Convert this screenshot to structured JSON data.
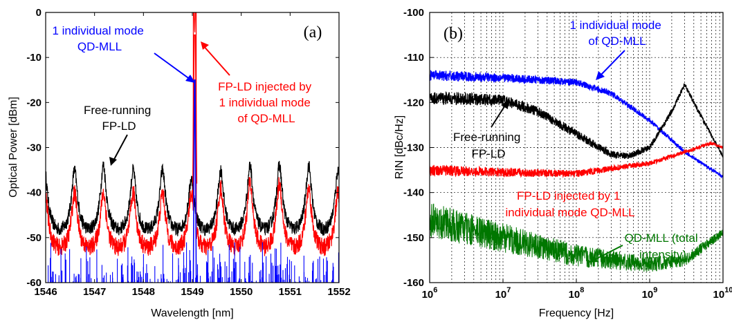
{
  "chart_data": [
    {
      "type": "line",
      "panel_label": "(a)",
      "xlabel": "Wavelength [nm]",
      "ylabel": "Optical Power [dBm]",
      "xlim": [
        1546,
        1552
      ],
      "ylim": [
        -60,
        0
      ],
      "xticks": [
        "1546",
        "1547",
        "1548",
        "1549",
        "1550",
        "1551",
        "1552"
      ],
      "yticks": [
        "0",
        "-10",
        "-20",
        "-30",
        "-40",
        "-50",
        "-60"
      ],
      "grid": false,
      "colors": {
        "free_running": "#000000",
        "injected": "#ff0000",
        "qd_mll": "#0000ff"
      },
      "series": [
        {
          "color": "#000000",
          "description": "free-running FP-LD comb",
          "peaks_x": [
            1545.98,
            1546.59,
            1547.18,
            1547.79,
            1548.39,
            1548.98,
            1549.58,
            1550.18,
            1550.78,
            1551.38,
            1551.98
          ],
          "peak_y": [
            -35,
            -35,
            -34,
            -35,
            -35,
            -37,
            -35,
            -34,
            -34,
            -34,
            -35
          ],
          "valley_y": -49
        },
        {
          "color": "#ff0000",
          "description": "FP-LD injected comb",
          "peaks_x": [
            1545.98,
            1546.59,
            1547.18,
            1547.79,
            1548.39,
            1548.98,
            1549.58,
            1550.18,
            1550.78,
            1551.38,
            1551.98
          ],
          "peak_y": [
            -39,
            -40,
            -40,
            -40,
            -40,
            -40,
            -39,
            -38,
            -38,
            -39,
            -40
          ],
          "valley_y": -53,
          "main_peak": {
            "x": 1549.05,
            "y": -5
          }
        },
        {
          "color": "#0000ff",
          "description": "individual QD-MLL mode",
          "main_peak": {
            "x": 1549.05,
            "y": -15
          },
          "noise_floor": -60,
          "noise_spikes_max": -50
        }
      ],
      "annotations": [
        {
          "lines": [
            "1 individual mode",
            "QD-MLL"
          ],
          "color": "#0000ff"
        },
        {
          "lines": [
            "FP-LD injected by",
            "1 individual mode",
            "of QD-MLL"
          ],
          "color": "#ff0000"
        },
        {
          "lines": [
            "Free-running",
            "FP-LD"
          ],
          "color": "#000000"
        }
      ]
    },
    {
      "type": "line",
      "panel_label": "(b)",
      "xlabel": "Frequency [Hz]",
      "ylabel": "RIN [dBc/Hz]",
      "xscale": "log",
      "xlim": [
        1000000,
        10000000000
      ],
      "ylim": [
        -160,
        -100
      ],
      "xticks": [
        {
          "base": "10",
          "exp": "6"
        },
        {
          "base": "10",
          "exp": "7"
        },
        {
          "base": "10",
          "exp": "8"
        },
        {
          "base": "10",
          "exp": "9"
        },
        {
          "base": "10",
          "exp": "10"
        }
      ],
      "yticks": [
        "-100",
        "-110",
        "-120",
        "-130",
        "-140",
        "-150",
        "-160"
      ],
      "grid": true,
      "series": [
        {
          "color": "#0000ff",
          "description": "1 individual mode of QD-MLL",
          "points": [
            [
              1000000,
              -114
            ],
            [
              10000000,
              -114.5
            ],
            [
              100000000,
              -115.5
            ],
            [
              300000000,
              -118
            ],
            [
              1000000000,
              -124
            ],
            [
              3000000000,
              -131
            ],
            [
              10000000000,
              -136.5
            ]
          ],
          "noise": 1.2
        },
        {
          "color": "#000000",
          "description": "Free-running FP-LD",
          "points": [
            [
              1000000,
              -119
            ],
            [
              10000000,
              -119.5
            ],
            [
              30000000,
              -122
            ],
            [
              100000000,
              -127
            ],
            [
              300000000,
              -131.5
            ],
            [
              500000000,
              -132
            ],
            [
              1000000000,
              -130
            ],
            [
              2000000000,
              -122
            ],
            [
              3000000000,
              -116
            ],
            [
              5000000000,
              -123
            ],
            [
              10000000000,
              -132
            ]
          ],
          "noise": 1.5
        },
        {
          "color": "#ff0000",
          "description": "FP-LD injected by 1 individual mode QD-MLL",
          "points": [
            [
              1000000,
              -135
            ],
            [
              10000000,
              -135.5
            ],
            [
              100000000,
              -135.8
            ],
            [
              1000000000,
              -133.5
            ],
            [
              3000000000,
              -131
            ],
            [
              7000000000,
              -129
            ],
            [
              10000000000,
              -130
            ]
          ],
          "noise": 1.2
        },
        {
          "color": "#007700",
          "description": "QD-MLL (total intensity)",
          "points": [
            [
              1000000,
              -146
            ],
            [
              3000000,
              -148
            ],
            [
              10000000,
              -150
            ],
            [
              30000000,
              -152
            ],
            [
              100000000,
              -154
            ],
            [
              1000000000,
              -156
            ],
            [
              3000000000,
              -155
            ],
            [
              10000000000,
              -149
            ]
          ],
          "noise": 4
        }
      ],
      "annotations": [
        {
          "lines": [
            "1 individual mode",
            "of QD-MLL"
          ],
          "color": "#0000ff"
        },
        {
          "lines": [
            "Free-running",
            "FP-LD"
          ],
          "color": "#000000"
        },
        {
          "lines": [
            "FP-LD injected by 1",
            "individual mode QD-MLL"
          ],
          "color": "#ff0000"
        },
        {
          "lines": [
            "QD-MLL (total",
            "intensity)"
          ],
          "color": "#007700"
        }
      ]
    }
  ]
}
